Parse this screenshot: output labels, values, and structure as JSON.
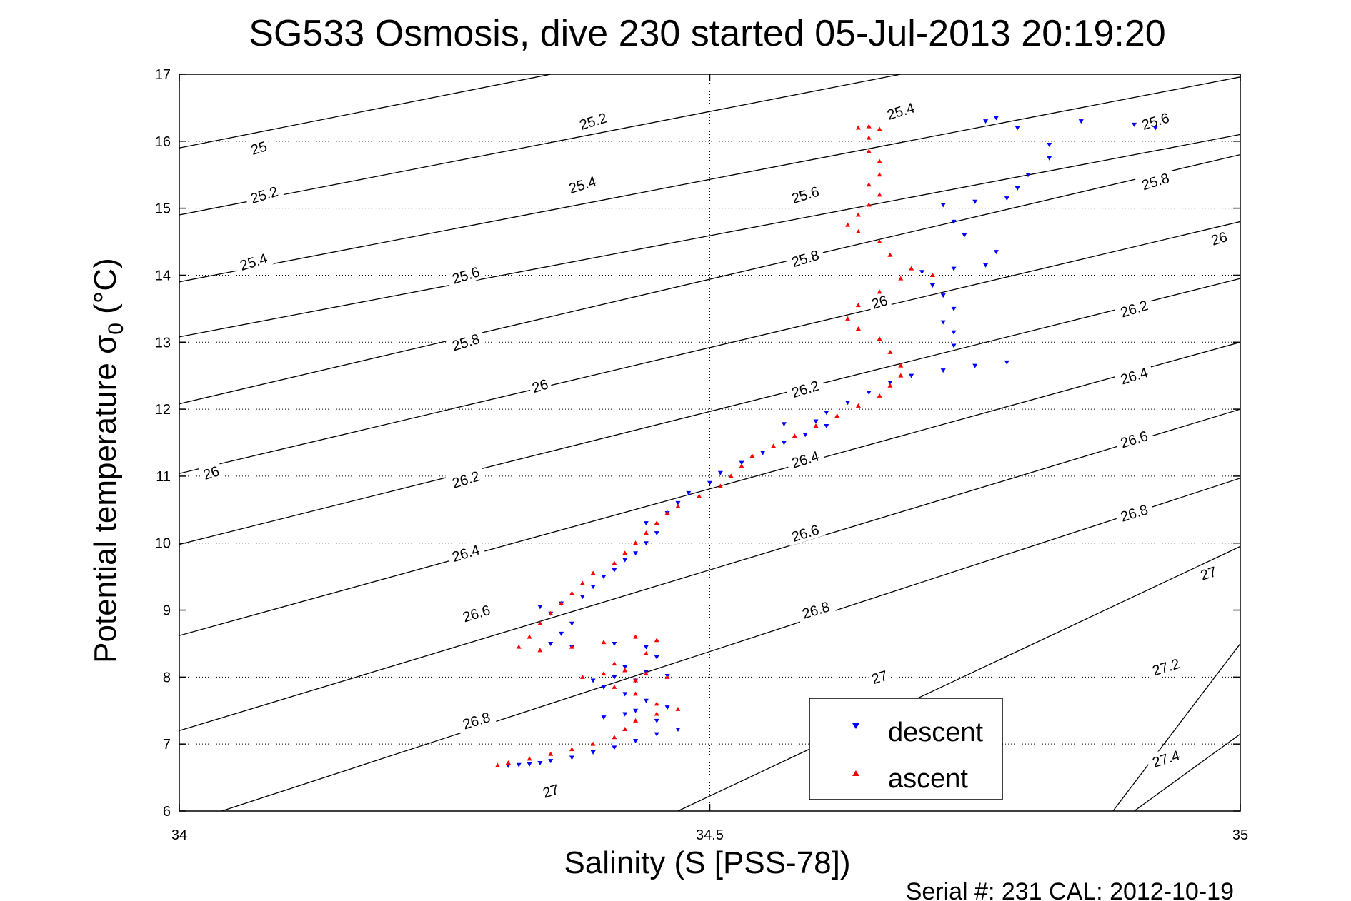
{
  "title": "SG533 Osmosis, dive 230 started 05-Jul-2013 20:19:20",
  "footer": "Serial #: 231  CAL: 2012-10-19",
  "colors": {
    "descent": "#0000ff",
    "ascent": "#ff0000",
    "contour": "#000000",
    "grid": "#000000"
  },
  "chart_data": {
    "type": "scatter",
    "title": "SG533 Osmosis, dive 230 started 05-Jul-2013 20:19:20",
    "xlabel": "Salinity (S [PSS-78])",
    "ylabel_main": "Potential temperature σ",
    "ylabel_sub": "0",
    "ylabel_unit": " (°C)",
    "xlim": [
      34,
      35
    ],
    "ylim": [
      6,
      17
    ],
    "xticks": [
      34,
      34.5,
      35
    ],
    "xtick_labels": [
      "34",
      "34.5",
      "35"
    ],
    "yticks": [
      6,
      7,
      8,
      9,
      10,
      11,
      12,
      13,
      14,
      15,
      16,
      17
    ],
    "ytick_labels": [
      "6",
      "7",
      "8",
      "9",
      "10",
      "11",
      "12",
      "13",
      "14",
      "15",
      "16",
      "17"
    ],
    "grid": true,
    "legend": {
      "position": "bottom-right",
      "entries": [
        "descent",
        "ascent"
      ]
    },
    "density_contours": {
      "levels": [
        25,
        25.2,
        25.4,
        25.6,
        25.8,
        26,
        26.2,
        26.4,
        26.6,
        26.8,
        27,
        27.2,
        27.4
      ],
      "lines": [
        {
          "level": 25,
          "points": [
            [
              34,
              15.9
            ],
            [
              34.35,
              17.0
            ]
          ]
        },
        {
          "level": 25.2,
          "points": [
            [
              34,
              14.9
            ],
            [
              34.68,
              17.0
            ]
          ]
        },
        {
          "level": 25.4,
          "points": [
            [
              34,
              13.9
            ],
            [
              35.0,
              16.96
            ]
          ]
        },
        {
          "level": 25.6,
          "points": [
            [
              34,
              13.08
            ],
            [
              35.0,
              16.1
            ]
          ]
        },
        {
          "level": 25.8,
          "points": [
            [
              34,
              12.08
            ],
            [
              35.0,
              15.8
            ]
          ]
        },
        {
          "level": 26,
          "points": [
            [
              34,
              11.04
            ],
            [
              35.0,
              14.8
            ]
          ]
        },
        {
          "level": 26.2,
          "points": [
            [
              34,
              9.98
            ],
            [
              35.0,
              13.95
            ]
          ]
        },
        {
          "level": 26.4,
          "points": [
            [
              34,
              8.62
            ],
            [
              35.0,
              13.0
            ]
          ]
        },
        {
          "level": 26.6,
          "points": [
            [
              34,
              7.2
            ],
            [
              35.0,
              12.0
            ]
          ]
        },
        {
          "level": 26.8,
          "points": [
            [
              34.04,
              6.0
            ],
            [
              35.0,
              10.97
            ]
          ]
        },
        {
          "level": 27,
          "points": [
            [
              34.47,
              6.0
            ],
            [
              35.0,
              9.95
            ]
          ]
        },
        {
          "level": 27.2,
          "points": [
            [
              34.88,
              6.0
            ],
            [
              35.0,
              8.5
            ]
          ]
        },
        {
          "level": 27.4,
          "points": [
            [
              34.9,
              6.0
            ],
            [
              35.0,
              7.15
            ]
          ]
        }
      ],
      "label_positions": [
        {
          "text": "25",
          "at": [
            34.075,
            15.9
          ]
        },
        {
          "text": "25.2",
          "at": [
            34.39,
            16.3
          ]
        },
        {
          "text": "25.4",
          "at": [
            34.68,
            16.45
          ]
        },
        {
          "text": "25.6",
          "at": [
            34.92,
            16.3
          ]
        },
        {
          "text": "25.2",
          "at": [
            34.08,
            15.2
          ]
        },
        {
          "text": "25.4",
          "at": [
            34.38,
            15.35
          ]
        },
        {
          "text": "25.6",
          "at": [
            34.59,
            15.2
          ]
        },
        {
          "text": "25.8",
          "at": [
            34.92,
            15.4
          ]
        },
        {
          "text": "25.4",
          "at": [
            34.07,
            14.2
          ]
        },
        {
          "text": "25.6",
          "at": [
            34.27,
            14.0
          ]
        },
        {
          "text": "25.8",
          "at": [
            34.59,
            14.25
          ]
        },
        {
          "text": "26",
          "at": [
            34.98,
            14.55
          ]
        },
        {
          "text": "25.8",
          "at": [
            34.27,
            13.0
          ]
        },
        {
          "text": "26",
          "at": [
            34.66,
            13.6
          ]
        },
        {
          "text": "26.2",
          "at": [
            34.9,
            13.5
          ]
        },
        {
          "text": "26",
          "at": [
            34.34,
            12.35
          ]
        },
        {
          "text": "26.2",
          "at": [
            34.59,
            12.3
          ]
        },
        {
          "text": "26.4",
          "at": [
            34.9,
            12.5
          ]
        },
        {
          "text": "26",
          "at": [
            34.03,
            11.05
          ]
        },
        {
          "text": "26.2",
          "at": [
            34.27,
            10.95
          ]
        },
        {
          "text": "26.4",
          "at": [
            34.59,
            11.25
          ]
        },
        {
          "text": "26.6",
          "at": [
            34.9,
            11.55
          ]
        },
        {
          "text": "26.4",
          "at": [
            34.27,
            9.85
          ]
        },
        {
          "text": "26.6",
          "at": [
            34.59,
            10.15
          ]
        },
        {
          "text": "26.8",
          "at": [
            34.9,
            10.45
          ]
        },
        {
          "text": "26.6",
          "at": [
            34.28,
            8.95
          ]
        },
        {
          "text": "26.8",
          "at": [
            34.6,
            9.0
          ]
        },
        {
          "text": "27",
          "at": [
            34.97,
            9.55
          ]
        },
        {
          "text": "26.8",
          "at": [
            34.28,
            7.35
          ]
        },
        {
          "text": "27",
          "at": [
            34.66,
            8.0
          ]
        },
        {
          "text": "27.2",
          "at": [
            34.93,
            8.15
          ]
        },
        {
          "text": "27",
          "at": [
            34.35,
            6.3
          ]
        },
        {
          "text": "27.4",
          "at": [
            34.93,
            6.78
          ]
        }
      ]
    },
    "series": [
      {
        "name": "descent",
        "marker": "triangle-down",
        "color": "#0000ff",
        "points": [
          [
            34.31,
            6.68
          ],
          [
            34.32,
            6.69
          ],
          [
            34.33,
            6.7
          ],
          [
            34.34,
            6.72
          ],
          [
            34.35,
            6.75
          ],
          [
            34.37,
            6.8
          ],
          [
            34.39,
            6.88
          ],
          [
            34.41,
            6.95
          ],
          [
            34.43,
            7.05
          ],
          [
            34.45,
            7.15
          ],
          [
            34.47,
            7.22
          ],
          [
            34.45,
            7.35
          ],
          [
            34.42,
            7.45
          ],
          [
            34.4,
            7.4
          ],
          [
            34.43,
            7.5
          ],
          [
            34.46,
            7.55
          ],
          [
            34.44,
            7.65
          ],
          [
            34.42,
            7.75
          ],
          [
            34.4,
            7.85
          ],
          [
            34.43,
            7.95
          ],
          [
            34.46,
            8.02
          ],
          [
            34.44,
            8.08
          ],
          [
            34.41,
            8.0
          ],
          [
            34.39,
            7.95
          ],
          [
            34.42,
            8.15
          ],
          [
            34.45,
            8.3
          ],
          [
            34.44,
            8.45
          ],
          [
            34.41,
            8.5
          ],
          [
            34.37,
            8.45
          ],
          [
            34.35,
            8.5
          ],
          [
            34.36,
            8.65
          ],
          [
            34.37,
            8.8
          ],
          [
            34.35,
            8.95
          ],
          [
            34.34,
            9.05
          ],
          [
            34.36,
            9.1
          ],
          [
            34.38,
            9.2
          ],
          [
            34.39,
            9.35
          ],
          [
            34.4,
            9.5
          ],
          [
            34.41,
            9.6
          ],
          [
            34.42,
            9.75
          ],
          [
            34.43,
            9.85
          ],
          [
            34.44,
            10.0
          ],
          [
            34.45,
            10.15
          ],
          [
            34.44,
            10.3
          ],
          [
            34.46,
            10.45
          ],
          [
            34.47,
            10.6
          ],
          [
            34.48,
            10.75
          ],
          [
            34.5,
            10.9
          ],
          [
            34.51,
            11.05
          ],
          [
            34.53,
            11.2
          ],
          [
            34.55,
            11.35
          ],
          [
            34.57,
            11.5
          ],
          [
            34.59,
            11.62
          ],
          [
            34.61,
            11.75
          ],
          [
            34.6,
            11.82
          ],
          [
            34.57,
            11.78
          ],
          [
            34.61,
            11.95
          ],
          [
            34.63,
            12.1
          ],
          [
            34.65,
            12.25
          ],
          [
            34.67,
            12.4
          ],
          [
            34.69,
            12.5
          ],
          [
            34.72,
            12.58
          ],
          [
            34.75,
            12.65
          ],
          [
            34.78,
            12.7
          ],
          [
            34.73,
            12.95
          ],
          [
            34.73,
            13.15
          ],
          [
            34.72,
            13.3
          ],
          [
            34.73,
            13.5
          ],
          [
            34.72,
            13.7
          ],
          [
            34.71,
            13.85
          ],
          [
            34.7,
            14.05
          ],
          [
            34.73,
            14.1
          ],
          [
            34.76,
            14.15
          ],
          [
            34.77,
            14.35
          ],
          [
            34.74,
            14.6
          ],
          [
            34.73,
            14.8
          ],
          [
            34.72,
            15.05
          ],
          [
            34.75,
            15.1
          ],
          [
            34.78,
            15.15
          ],
          [
            34.79,
            15.3
          ],
          [
            34.8,
            15.5
          ],
          [
            34.82,
            15.75
          ],
          [
            34.82,
            15.95
          ],
          [
            34.76,
            16.3
          ],
          [
            34.77,
            16.35
          ],
          [
            34.79,
            16.2
          ],
          [
            34.85,
            16.3
          ],
          [
            34.9,
            16.25
          ],
          [
            34.92,
            16.2
          ]
        ]
      },
      {
        "name": "ascent",
        "marker": "triangle-up",
        "color": "#ff0000",
        "points": [
          [
            34.3,
            6.68
          ],
          [
            34.31,
            6.72
          ],
          [
            34.33,
            6.78
          ],
          [
            34.35,
            6.85
          ],
          [
            34.37,
            6.92
          ],
          [
            34.39,
            7.0
          ],
          [
            34.41,
            7.1
          ],
          [
            34.42,
            7.22
          ],
          [
            34.43,
            7.35
          ],
          [
            34.45,
            7.45
          ],
          [
            34.47,
            7.52
          ],
          [
            34.45,
            7.6
          ],
          [
            34.43,
            7.75
          ],
          [
            34.41,
            7.85
          ],
          [
            34.43,
            7.95
          ],
          [
            34.46,
            8.0
          ],
          [
            34.44,
            8.05
          ],
          [
            34.42,
            8.1
          ],
          [
            34.4,
            8.05
          ],
          [
            34.38,
            8.0
          ],
          [
            34.41,
            8.2
          ],
          [
            34.44,
            8.35
          ],
          [
            34.45,
            8.55
          ],
          [
            34.43,
            8.6
          ],
          [
            34.4,
            8.52
          ],
          [
            34.37,
            8.45
          ],
          [
            34.34,
            8.4
          ],
          [
            34.32,
            8.45
          ],
          [
            34.33,
            8.6
          ],
          [
            34.34,
            8.8
          ],
          [
            34.35,
            8.95
          ],
          [
            34.36,
            9.1
          ],
          [
            34.37,
            9.25
          ],
          [
            34.38,
            9.4
          ],
          [
            34.39,
            9.55
          ],
          [
            34.41,
            9.7
          ],
          [
            34.42,
            9.85
          ],
          [
            34.43,
            10.0
          ],
          [
            34.44,
            10.15
          ],
          [
            34.45,
            10.3
          ],
          [
            34.46,
            10.45
          ],
          [
            34.47,
            10.55
          ],
          [
            34.49,
            10.7
          ],
          [
            34.51,
            10.85
          ],
          [
            34.52,
            11.0
          ],
          [
            34.53,
            11.15
          ],
          [
            34.54,
            11.3
          ],
          [
            34.56,
            11.45
          ],
          [
            34.58,
            11.6
          ],
          [
            34.6,
            11.75
          ],
          [
            34.62,
            11.9
          ],
          [
            34.64,
            12.05
          ],
          [
            34.66,
            12.2
          ],
          [
            34.67,
            12.35
          ],
          [
            34.68,
            12.5
          ],
          [
            34.68,
            12.65
          ],
          [
            34.67,
            12.85
          ],
          [
            34.66,
            13.05
          ],
          [
            34.64,
            13.2
          ],
          [
            34.63,
            13.35
          ],
          [
            34.64,
            13.55
          ],
          [
            34.66,
            13.75
          ],
          [
            34.68,
            13.95
          ],
          [
            34.71,
            14.0
          ],
          [
            34.69,
            14.1
          ],
          [
            34.67,
            14.3
          ],
          [
            34.66,
            14.5
          ],
          [
            34.64,
            14.65
          ],
          [
            34.63,
            14.75
          ],
          [
            34.64,
            14.9
          ],
          [
            34.65,
            15.05
          ],
          [
            34.66,
            15.2
          ],
          [
            34.65,
            15.35
          ],
          [
            34.66,
            15.5
          ],
          [
            34.66,
            15.7
          ],
          [
            34.65,
            15.85
          ],
          [
            34.65,
            16.05
          ],
          [
            34.64,
            16.2
          ],
          [
            34.65,
            16.22
          ],
          [
            34.66,
            16.18
          ]
        ]
      }
    ]
  }
}
